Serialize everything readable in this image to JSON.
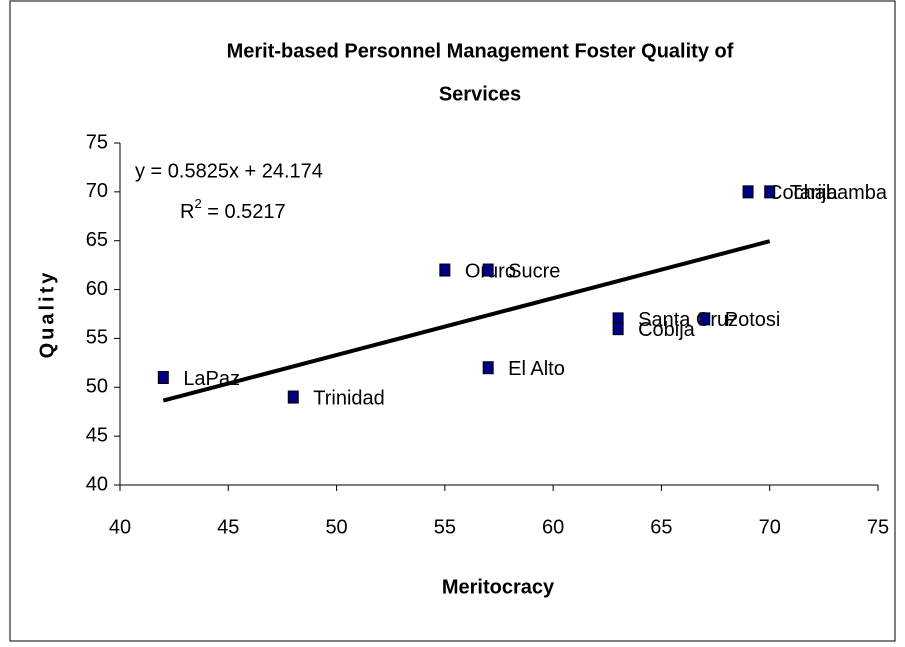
{
  "chart_data": {
    "type": "scatter",
    "title": [
      "Merit-based Personnel Management Foster Quality of",
      "Services"
    ],
    "x_label": "Meritocracy",
    "y_label": "Quality",
    "color": "#000080",
    "points": [
      {
        "name": "LaPaz",
        "x": 42,
        "y": 51
      },
      {
        "name": "Trinidad",
        "x": 48,
        "y": 49
      },
      {
        "name": "Oruro",
        "x": 55,
        "y": 62
      },
      {
        "name": "Sucre",
        "x": 57,
        "y": 62
      },
      {
        "name": "El Alto",
        "x": 57,
        "y": 52
      },
      {
        "name": "Santa Cruz",
        "x": 63,
        "y": 57
      },
      {
        "name": "Cobija",
        "x": 63,
        "y": 56
      },
      {
        "name": "Potosi",
        "x": 67,
        "y": 57
      },
      {
        "name": "Cochabamba",
        "x": 69,
        "y": 70
      },
      {
        "name": "Tarija",
        "x": 70,
        "y": 70
      }
    ],
    "trendline": {
      "equation": "y = 0.5825x + 24.174",
      "r2_base": "R",
      "r2_sup": "2",
      "r2_rest": " = 0.5217",
      "slope": 0.5825,
      "intercept": 24.174,
      "x_range": [
        42,
        70
      ]
    },
    "xlim": [
      40,
      75
    ],
    "xticks": [
      40,
      45,
      50,
      55,
      60,
      65,
      70,
      75
    ],
    "ylim": [
      40,
      75
    ],
    "yticks": [
      40,
      45,
      50,
      55,
      60,
      65,
      70,
      75
    ]
  }
}
